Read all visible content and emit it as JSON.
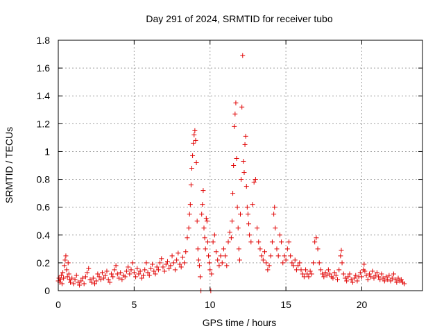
{
  "chart_data": {
    "type": "scatter",
    "title": "Day 291 of 2024, SRMTID for receiver tubo",
    "xlabel": "GPS time / hours",
    "ylabel": "SRMTID / TECUs",
    "xlim": [
      0,
      24
    ],
    "ylim": [
      0,
      1.8
    ],
    "xticks": [
      0,
      5,
      10,
      15,
      20
    ],
    "xtick_labels": [
      "0",
      "5",
      "10",
      "15",
      "20"
    ],
    "yticks": [
      0,
      0.2,
      0.4,
      0.6,
      0.8,
      1.0,
      1.2,
      1.4,
      1.6,
      1.8
    ],
    "ytick_labels": [
      "0",
      "0.2",
      "0.4",
      "0.6",
      "0.8",
      "1",
      "1.2",
      "1.4",
      "1.6",
      "1.8"
    ],
    "grid": true,
    "marker": "+",
    "color": "#e00000",
    "series": [
      {
        "name": "SRMTID",
        "points": [
          [
            0.0,
            0.07
          ],
          [
            0.05,
            0.09
          ],
          [
            0.1,
            0.06
          ],
          [
            0.15,
            0.08
          ],
          [
            0.2,
            0.11
          ],
          [
            0.25,
            0.05
          ],
          [
            0.3,
            0.13
          ],
          [
            0.35,
            0.09
          ],
          [
            0.4,
            0.18
          ],
          [
            0.45,
            0.22
          ],
          [
            0.5,
            0.25
          ],
          [
            0.55,
            0.15
          ],
          [
            0.6,
            0.1
          ],
          [
            0.65,
            0.2
          ],
          [
            0.7,
            0.12
          ],
          [
            0.75,
            0.08
          ],
          [
            0.8,
            0.06
          ],
          [
            0.9,
            0.09
          ],
          [
            1.0,
            0.05
          ],
          [
            1.1,
            0.08
          ],
          [
            1.2,
            0.11
          ],
          [
            1.3,
            0.06
          ],
          [
            1.4,
            0.04
          ],
          [
            1.5,
            0.07
          ],
          [
            1.6,
            0.09
          ],
          [
            1.7,
            0.05
          ],
          [
            1.8,
            0.1
          ],
          [
            1.9,
            0.13
          ],
          [
            2.0,
            0.16
          ],
          [
            2.1,
            0.08
          ],
          [
            2.2,
            0.06
          ],
          [
            2.3,
            0.09
          ],
          [
            2.4,
            0.05
          ],
          [
            2.5,
            0.07
          ],
          [
            2.6,
            0.12
          ],
          [
            2.7,
            0.1
          ],
          [
            2.8,
            0.08
          ],
          [
            2.9,
            0.13
          ],
          [
            3.0,
            0.09
          ],
          [
            3.1,
            0.11
          ],
          [
            3.2,
            0.14
          ],
          [
            3.3,
            0.08
          ],
          [
            3.4,
            0.06
          ],
          [
            3.5,
            0.12
          ],
          [
            3.6,
            0.1
          ],
          [
            3.7,
            0.15
          ],
          [
            3.8,
            0.18
          ],
          [
            3.9,
            0.12
          ],
          [
            4.0,
            0.09
          ],
          [
            4.1,
            0.13
          ],
          [
            4.2,
            0.08
          ],
          [
            4.3,
            0.11
          ],
          [
            4.4,
            0.1
          ],
          [
            4.5,
            0.14
          ],
          [
            4.6,
            0.17
          ],
          [
            4.7,
            0.12
          ],
          [
            4.8,
            0.15
          ],
          [
            4.9,
            0.2
          ],
          [
            5.0,
            0.13
          ],
          [
            5.1,
            0.1
          ],
          [
            5.2,
            0.16
          ],
          [
            5.3,
            0.12
          ],
          [
            5.4,
            0.14
          ],
          [
            5.5,
            0.09
          ],
          [
            5.6,
            0.11
          ],
          [
            5.7,
            0.15
          ],
          [
            5.8,
            0.2
          ],
          [
            5.9,
            0.13
          ],
          [
            6.0,
            0.11
          ],
          [
            6.1,
            0.16
          ],
          [
            6.2,
            0.19
          ],
          [
            6.3,
            0.14
          ],
          [
            6.4,
            0.12
          ],
          [
            6.5,
            0.17
          ],
          [
            6.6,
            0.15
          ],
          [
            6.7,
            0.2
          ],
          [
            6.8,
            0.23
          ],
          [
            6.9,
            0.17
          ],
          [
            7.0,
            0.14
          ],
          [
            7.1,
            0.19
          ],
          [
            7.2,
            0.21
          ],
          [
            7.3,
            0.16
          ],
          [
            7.4,
            0.18
          ],
          [
            7.5,
            0.25
          ],
          [
            7.6,
            0.2
          ],
          [
            7.7,
            0.15
          ],
          [
            7.8,
            0.22
          ],
          [
            7.9,
            0.27
          ],
          [
            8.0,
            0.19
          ],
          [
            8.1,
            0.17
          ],
          [
            8.2,
            0.24
          ],
          [
            8.3,
            0.2
          ],
          [
            8.4,
            0.28
          ],
          [
            8.5,
            0.38
          ],
          [
            8.6,
            0.45
          ],
          [
            8.65,
            0.55
          ],
          [
            8.7,
            0.62
          ],
          [
            8.75,
            0.76
          ],
          [
            8.8,
            0.88
          ],
          [
            8.85,
            0.97
          ],
          [
            8.9,
            1.06
          ],
          [
            8.95,
            1.12
          ],
          [
            9.0,
            1.15
          ],
          [
            9.05,
            1.08
          ],
          [
            9.1,
            0.92
          ],
          [
            9.15,
            0.5
          ],
          [
            9.2,
            0.3
          ],
          [
            9.25,
            0.22
          ],
          [
            9.3,
            0.18
          ],
          [
            9.35,
            0.1
          ],
          [
            9.4,
            0.0
          ],
          [
            9.45,
            0.55
          ],
          [
            9.5,
            0.62
          ],
          [
            9.55,
            0.72
          ],
          [
            9.6,
            0.45
          ],
          [
            9.65,
            0.38
          ],
          [
            9.7,
            0.3
          ],
          [
            9.75,
            0.52
          ],
          [
            9.8,
            0.5
          ],
          [
            9.85,
            0.35
          ],
          [
            9.9,
            0.25
          ],
          [
            9.95,
            0.2
          ],
          [
            10.0,
            0.15
          ],
          [
            10.05,
            0.0
          ],
          [
            10.1,
            0.12
          ],
          [
            10.2,
            0.35
          ],
          [
            10.3,
            0.4
          ],
          [
            10.4,
            0.28
          ],
          [
            10.5,
            0.22
          ],
          [
            10.6,
            0.18
          ],
          [
            10.7,
            0.25
          ],
          [
            10.8,
            0.2
          ],
          [
            10.9,
            0.3
          ],
          [
            11.0,
            0.25
          ],
          [
            11.1,
            0.18
          ],
          [
            11.2,
            0.35
          ],
          [
            11.3,
            0.42
          ],
          [
            11.4,
            0.38
          ],
          [
            11.45,
            0.5
          ],
          [
            11.5,
            0.7
          ],
          [
            11.55,
            0.9
          ],
          [
            11.6,
            1.18
          ],
          [
            11.65,
            1.27
          ],
          [
            11.7,
            1.35
          ],
          [
            11.75,
            0.95
          ],
          [
            11.8,
            0.6
          ],
          [
            11.85,
            0.45
          ],
          [
            11.9,
            0.3
          ],
          [
            11.95,
            0.22
          ],
          [
            12.0,
            0.55
          ],
          [
            12.05,
            0.8
          ],
          [
            12.1,
            1.32
          ],
          [
            12.15,
            1.69
          ],
          [
            12.2,
            0.93
          ],
          [
            12.25,
            0.85
          ],
          [
            12.3,
            1.05
          ],
          [
            12.35,
            1.11
          ],
          [
            12.4,
            0.75
          ],
          [
            12.45,
            0.6
          ],
          [
            12.5,
            0.55
          ],
          [
            12.55,
            0.48
          ],
          [
            12.6,
            0.4
          ],
          [
            12.7,
            0.35
          ],
          [
            12.8,
            0.62
          ],
          [
            12.9,
            0.78
          ],
          [
            13.0,
            0.8
          ],
          [
            13.1,
            0.45
          ],
          [
            13.2,
            0.35
          ],
          [
            13.3,
            0.3
          ],
          [
            13.4,
            0.25
          ],
          [
            13.5,
            0.22
          ],
          [
            13.6,
            0.28
          ],
          [
            13.7,
            0.2
          ],
          [
            13.8,
            0.15
          ],
          [
            13.9,
            0.18
          ],
          [
            14.0,
            0.25
          ],
          [
            14.1,
            0.35
          ],
          [
            14.2,
            0.55
          ],
          [
            14.25,
            0.6
          ],
          [
            14.3,
            0.45
          ],
          [
            14.4,
            0.3
          ],
          [
            14.5,
            0.25
          ],
          [
            14.6,
            0.4
          ],
          [
            14.7,
            0.35
          ],
          [
            14.8,
            0.2
          ],
          [
            14.9,
            0.25
          ],
          [
            15.0,
            0.22
          ],
          [
            15.1,
            0.3
          ],
          [
            15.2,
            0.35
          ],
          [
            15.3,
            0.25
          ],
          [
            15.4,
            0.2
          ],
          [
            15.5,
            0.18
          ],
          [
            15.6,
            0.22
          ],
          [
            15.7,
            0.15
          ],
          [
            15.8,
            0.18
          ],
          [
            15.9,
            0.2
          ],
          [
            16.0,
            0.15
          ],
          [
            16.1,
            0.12
          ],
          [
            16.2,
            0.1
          ],
          [
            16.3,
            0.15
          ],
          [
            16.4,
            0.12
          ],
          [
            16.5,
            0.1
          ],
          [
            16.6,
            0.14
          ],
          [
            16.7,
            0.12
          ],
          [
            16.8,
            0.2
          ],
          [
            16.9,
            0.35
          ],
          [
            17.0,
            0.38
          ],
          [
            17.1,
            0.3
          ],
          [
            17.2,
            0.2
          ],
          [
            17.3,
            0.15
          ],
          [
            17.4,
            0.12
          ],
          [
            17.5,
            0.1
          ],
          [
            17.6,
            0.13
          ],
          [
            17.7,
            0.11
          ],
          [
            17.8,
            0.15
          ],
          [
            17.9,
            0.12
          ],
          [
            18.0,
            0.1
          ],
          [
            18.1,
            0.09
          ],
          [
            18.2,
            0.13
          ],
          [
            18.3,
            0.11
          ],
          [
            18.4,
            0.08
          ],
          [
            18.5,
            0.15
          ],
          [
            18.6,
            0.25
          ],
          [
            18.65,
            0.29
          ],
          [
            18.7,
            0.2
          ],
          [
            18.8,
            0.12
          ],
          [
            18.9,
            0.09
          ],
          [
            19.0,
            0.07
          ],
          [
            19.1,
            0.1
          ],
          [
            19.2,
            0.12
          ],
          [
            19.3,
            0.08
          ],
          [
            19.4,
            0.06
          ],
          [
            19.5,
            0.09
          ],
          [
            19.6,
            0.11
          ],
          [
            19.7,
            0.07
          ],
          [
            19.8,
            0.1
          ],
          [
            19.9,
            0.13
          ],
          [
            20.0,
            0.1
          ],
          [
            20.1,
            0.15
          ],
          [
            20.15,
            0.19
          ],
          [
            20.2,
            0.14
          ],
          [
            20.3,
            0.11
          ],
          [
            20.4,
            0.08
          ],
          [
            20.5,
            0.12
          ],
          [
            20.6,
            0.1
          ],
          [
            20.7,
            0.14
          ],
          [
            20.8,
            0.09
          ],
          [
            20.9,
            0.11
          ],
          [
            21.0,
            0.13
          ],
          [
            21.1,
            0.1
          ],
          [
            21.2,
            0.08
          ],
          [
            21.3,
            0.12
          ],
          [
            21.4,
            0.09
          ],
          [
            21.5,
            0.07
          ],
          [
            21.6,
            0.1
          ],
          [
            21.7,
            0.08
          ],
          [
            21.8,
            0.11
          ],
          [
            21.9,
            0.07
          ],
          [
            22.0,
            0.09
          ],
          [
            22.1,
            0.12
          ],
          [
            22.2,
            0.08
          ],
          [
            22.3,
            0.06
          ],
          [
            22.4,
            0.09
          ],
          [
            22.5,
            0.07
          ],
          [
            22.6,
            0.08
          ],
          [
            22.7,
            0.06
          ],
          [
            22.8,
            0.05
          ]
        ]
      }
    ]
  }
}
